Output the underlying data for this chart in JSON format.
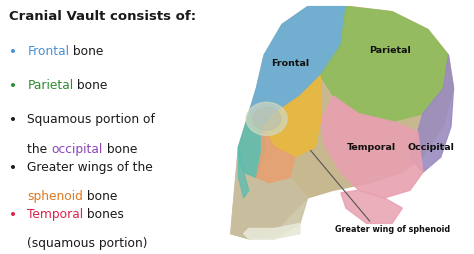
{
  "bg_color": "#ffffff",
  "title": "Cranial Vault consists of:",
  "title_color": "#1a1a1a",
  "title_fontsize": 9.5,
  "bullets": [
    {
      "bullet_color": "#4a8fd4",
      "lines": [
        [
          {
            "text": "Frontal",
            "color": "#4a8fd4"
          },
          {
            "text": " bone",
            "color": "#1a1a1a"
          }
        ]
      ]
    },
    {
      "bullet_color": "#2e8b2e",
      "lines": [
        [
          {
            "text": "Parietal",
            "color": "#2e8b2e"
          },
          {
            "text": " bone",
            "color": "#1a1a1a"
          }
        ]
      ]
    },
    {
      "bullet_color": "#1a1a1a",
      "lines": [
        [
          {
            "text": "Squamous portion of",
            "color": "#1a1a1a"
          }
        ],
        [
          {
            "text": "the ",
            "color": "#1a1a1a"
          },
          {
            "text": "occipital",
            "color": "#8844bb"
          },
          {
            "text": " bone",
            "color": "#1a1a1a"
          }
        ]
      ]
    },
    {
      "bullet_color": "#1a1a1a",
      "lines": [
        [
          {
            "text": "Greater wings of the",
            "color": "#1a1a1a"
          }
        ],
        [
          {
            "text": "sphenoid",
            "color": "#e07820"
          },
          {
            "text": " bone",
            "color": "#1a1a1a"
          }
        ]
      ]
    },
    {
      "bullet_color": "#e0204a",
      "lines": [
        [
          {
            "text": "Temporal",
            "color": "#e0204a"
          },
          {
            "text": " bones",
            "color": "#1a1a1a"
          }
        ],
        [
          {
            "text": "(squamous portion)",
            "color": "#1a1a1a"
          }
        ]
      ]
    }
  ]
}
